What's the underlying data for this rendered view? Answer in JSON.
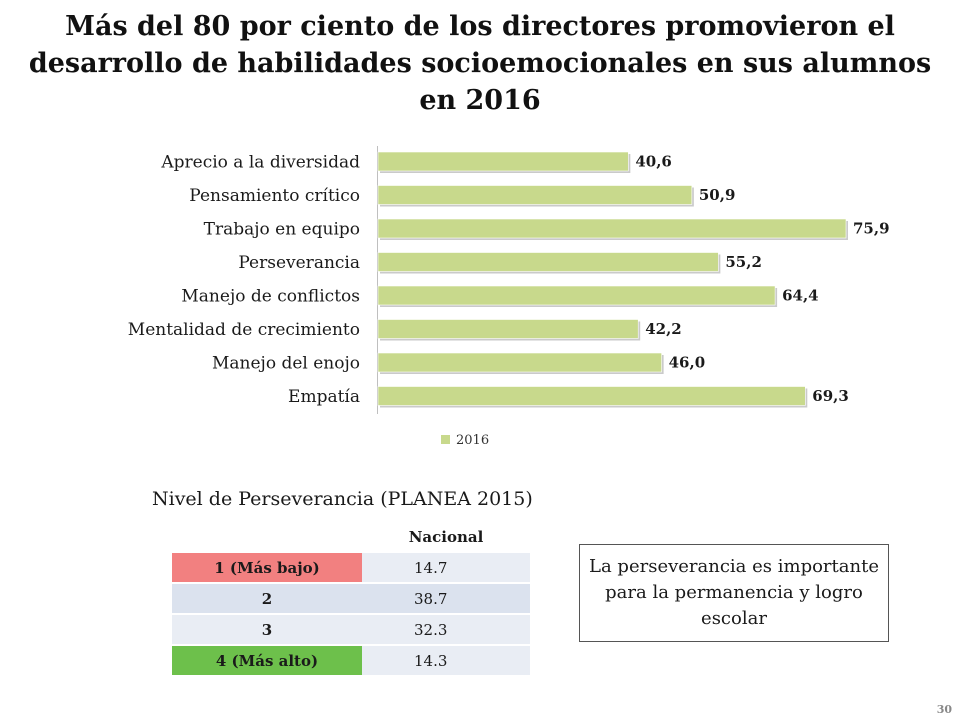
{
  "title": "Más del 80 por ciento de los directores promovieron el desarrollo de habilidades socioemocionales en sus alumnos en 2016",
  "chart_data": {
    "type": "bar",
    "orientation": "horizontal",
    "categories": [
      "Aprecio a la diversidad",
      "Pensamiento crítico",
      "Trabajo en equipo",
      "Perseverancia",
      "Manejo de conflictos",
      "Mentalidad de crecimiento",
      "Manejo del enojo",
      "Empatía"
    ],
    "series": [
      {
        "name": "2016",
        "values": [
          40.6,
          50.9,
          75.9,
          55.2,
          64.4,
          42.2,
          46.0,
          69.3
        ],
        "labels": [
          "40,6",
          "50,9",
          "75,9",
          "55,2",
          "64,4",
          "42,2",
          "46,0",
          "69,3"
        ],
        "color": "#c8d98c"
      }
    ],
    "xlim": [
      0,
      78
    ],
    "grid": false,
    "legend": "bottom"
  },
  "table": {
    "caption": "Nivel de Perseverancia (PLANEA 2015)",
    "column_header": "Nacional",
    "rows": [
      {
        "level": "1 (Más bajo)",
        "value": "14.7",
        "color": "#f28080"
      },
      {
        "level": "2",
        "value": "38.7",
        "color": "#dbe2ee"
      },
      {
        "level": "3",
        "value": "32.3",
        "color": "#e9edf4"
      },
      {
        "level": "4 (Más alto)",
        "value": "14.3",
        "color": "#6dc04b"
      }
    ]
  },
  "note": "La perseverancia es importante para la permanencia y logro escolar",
  "page_number": "30"
}
